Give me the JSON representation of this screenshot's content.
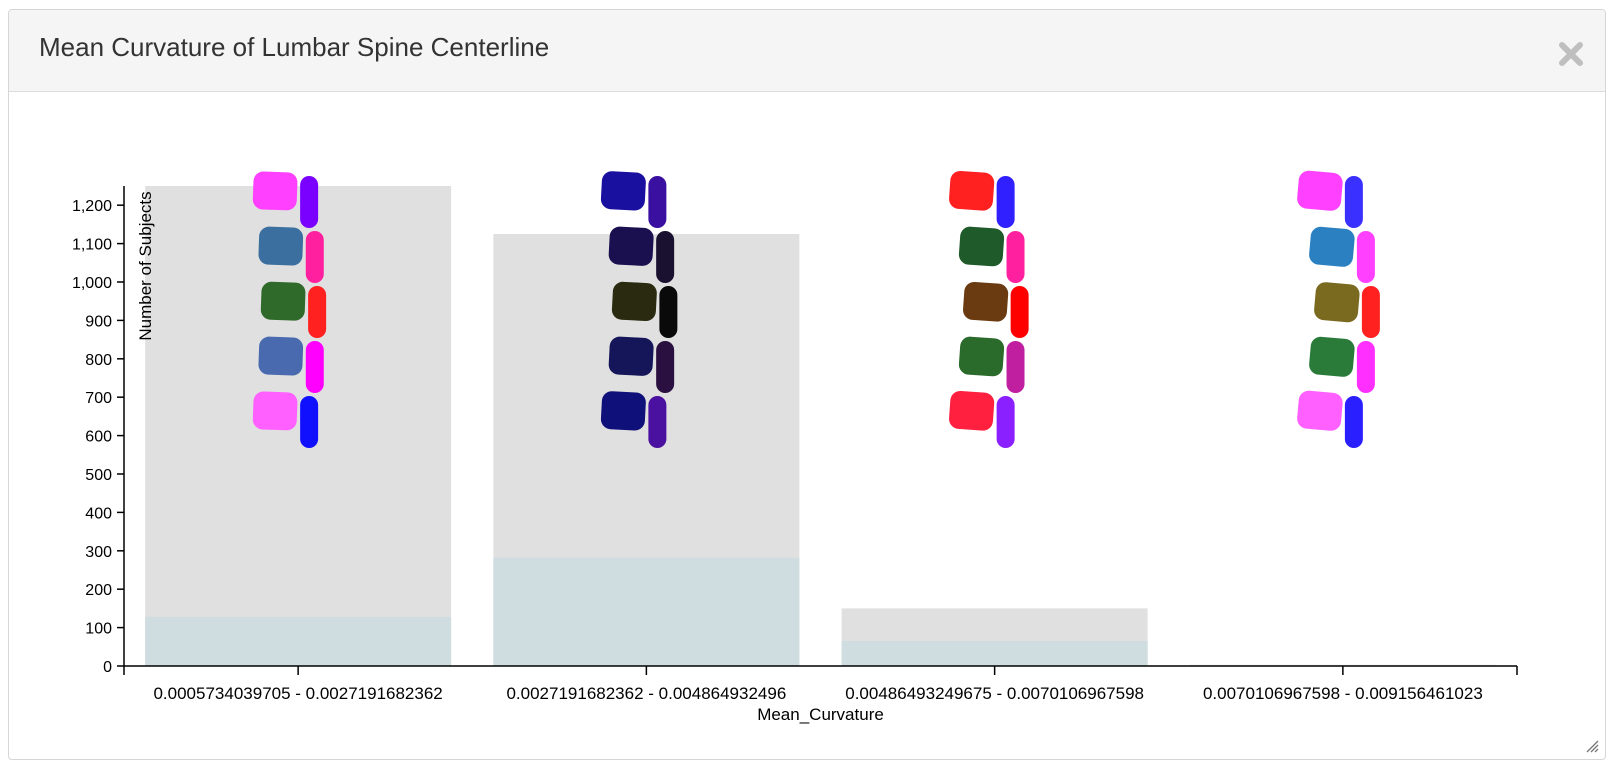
{
  "panel": {
    "title": "Mean Curvature of Lumbar Spine Centerline",
    "close_icon": "close-icon",
    "resize_icon": "resize-grip-icon"
  },
  "chart_data": {
    "type": "bar",
    "title": "",
    "xlabel": "Mean_Curvature",
    "ylabel": "Number of Subjects",
    "ylim": [
      0,
      1250
    ],
    "yticks": [
      0,
      100,
      200,
      300,
      400,
      500,
      600,
      700,
      800,
      900,
      1000,
      1100,
      1200
    ],
    "ytick_labels": [
      "0",
      "100",
      "200",
      "300",
      "400",
      "500",
      "600",
      "700",
      "800",
      "900",
      "1,000",
      "1,100",
      "1,200"
    ],
    "categories": [
      "0.0005734039705 - 0.00271916823362",
      "0.00271916823362 - 0.00486493249675",
      "0.00486493249675 - 0.00701069675987",
      "0.00701069675987 - 0.009156461023"
    ],
    "tick_labels": [
      "0.0005734039705 - 0.0027191682362",
      "0.0027191682362 - 0.004864932496",
      "0.00486493249675 - 0.0070106967598",
      "0.0070106967598 - 0.009156461023"
    ],
    "series": [
      {
        "values": [
          1250,
          1125,
          150,
          3
        ]
      },
      {
        "values": [
          128,
          282,
          65,
          1
        ]
      }
    ],
    "colors": {
      "total": "#e0e0e0",
      "subset": "#d0dde0",
      "axis": "#000000"
    },
    "grid": false,
    "thumbnails": [
      {
        "icon": "spine-model-icon",
        "tint": [
          "#ff40ff",
          "#3a6fa0",
          "#2f6a2a",
          "#4a6ab0",
          "#ff60ff"
        ],
        "rod": [
          "#7a00ff",
          "#ff20a0",
          "#ff2020",
          "#ff00ff",
          "#1010ff"
        ]
      },
      {
        "icon": "spine-model-icon",
        "tint": [
          "#1a10a0",
          "#1a1050",
          "#2a2a10",
          "#15155a",
          "#10107a"
        ],
        "rod": [
          "#3a10a0",
          "#1a1030",
          "#0a0a0a",
          "#2a1040",
          "#4a10a0"
        ]
      },
      {
        "icon": "spine-model-icon",
        "tint": [
          "#ff2020",
          "#1f5a2a",
          "#6a3a10",
          "#2a6a2a",
          "#ff2040"
        ],
        "rod": [
          "#3020ff",
          "#ff20a0",
          "#ff0000",
          "#c020a0",
          "#8a20ff"
        ]
      },
      {
        "icon": "spine-model-icon",
        "tint": [
          "#ff40ff",
          "#2a80c0",
          "#7a6a20",
          "#2a7a3a",
          "#ff60ff"
        ],
        "rod": [
          "#3a30ff",
          "#ff40ff",
          "#ff2020",
          "#ff30ff",
          "#2a20ff"
        ]
      }
    ]
  }
}
